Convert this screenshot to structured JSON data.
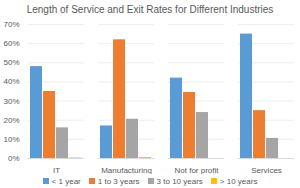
{
  "chart_data": {
    "type": "bar",
    "title": "Length of Service and Exit Rates for Different Industries",
    "categories": [
      "IT",
      "Manufacturing",
      "Not for profit",
      "Services"
    ],
    "series": [
      {
        "name": "< 1 year",
        "color": "#5B9BD5",
        "values": [
          48,
          17,
          42,
          65
        ]
      },
      {
        "name": "1 to 3 years",
        "color": "#ED7D31",
        "values": [
          35,
          62,
          34.5,
          25
        ]
      },
      {
        "name": "3 to 10 years",
        "color": "#A5A5A5",
        "values": [
          16,
          20.5,
          24,
          10.5
        ]
      },
      {
        "name": "> 10 years",
        "color": "#FFC000",
        "values": [
          0.3,
          0.5,
          0,
          0
        ]
      }
    ],
    "ylim": [
      0,
      70
    ],
    "yticks": [
      {
        "value": 0,
        "label": "0%"
      },
      {
        "value": 10,
        "label": "10%"
      },
      {
        "value": 20,
        "label": "20%"
      },
      {
        "value": 30,
        "label": "30%"
      },
      {
        "value": 40,
        "label": "40%"
      },
      {
        "value": 50,
        "label": "50%"
      },
      {
        "value": 60,
        "label": "60%"
      },
      {
        "value": 70,
        "label": "70%"
      }
    ],
    "grid": true,
    "legend": "bottom"
  }
}
